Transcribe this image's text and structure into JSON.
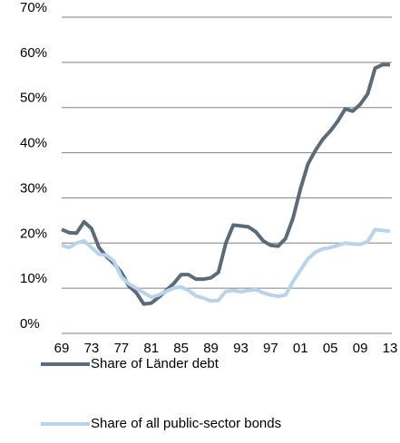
{
  "chart_data": {
    "type": "line",
    "categories": [
      "69",
      null,
      null,
      null,
      "73",
      null,
      null,
      null,
      "77",
      null,
      null,
      null,
      "81",
      null,
      null,
      null,
      "85",
      null,
      null,
      null,
      "89",
      null,
      null,
      null,
      "93",
      null,
      null,
      null,
      "97",
      null,
      null,
      null,
      "01",
      null,
      null,
      null,
      "05",
      null,
      null,
      null,
      "09",
      null,
      null,
      null,
      "13"
    ],
    "series": [
      {
        "name": "Share of Länder debt",
        "color": "#5b6b7a",
        "values": [
          23,
          22.3,
          22.2,
          24.7,
          23.2,
          19,
          17,
          15.5,
          13.5,
          10.5,
          9,
          6.5,
          6.7,
          8,
          9.5,
          11,
          13,
          13,
          12,
          12,
          12.3,
          13.5,
          20,
          24,
          23.8,
          23.6,
          22.5,
          20.5,
          19.5,
          19.3,
          21,
          25.5,
          32,
          37.5,
          40.5,
          43,
          44.8,
          47,
          49.7,
          49.2,
          50.7,
          53,
          58.7,
          59.5,
          59.5
        ]
      },
      {
        "name": "Share of all public-sector bonds",
        "color": "#b8d4ed",
        "values": [
          19.5,
          19,
          20,
          20.5,
          19,
          17.5,
          17.3,
          16,
          12.5,
          11,
          10,
          9,
          8,
          8.5,
          9.3,
          10,
          10.3,
          9.5,
          8.3,
          7.8,
          7.2,
          7.3,
          9.3,
          9.5,
          9.2,
          9.5,
          9.7,
          9,
          8.5,
          8.2,
          8.5,
          11.5,
          14,
          16.5,
          18,
          18.7,
          19,
          19.5,
          20,
          19.8,
          19.7,
          20.3,
          23,
          22.8,
          22.6
        ]
      }
    ],
    "ylim": [
      0,
      70
    ],
    "yticks": [
      {
        "value": 0,
        "label": "0%"
      },
      {
        "value": 10,
        "label": "10%"
      },
      {
        "value": 20,
        "label": "20%"
      },
      {
        "value": 30,
        "label": "30%"
      },
      {
        "value": 40,
        "label": "40%"
      },
      {
        "value": 50,
        "label": "50%"
      },
      {
        "value": 60,
        "label": "60%"
      },
      {
        "value": 70,
        "label": "70%"
      }
    ],
    "grid": true
  }
}
